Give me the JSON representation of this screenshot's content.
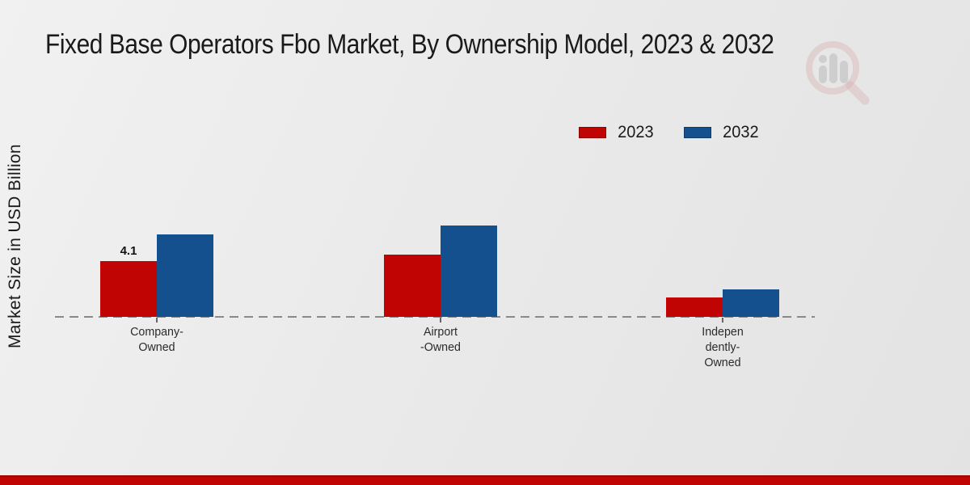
{
  "title": "Fixed Base Operators Fbo Market, By Ownership Model, 2023 & 2032",
  "y_axis_label": "Market Size in USD Billion",
  "legend": [
    {
      "label": "2023",
      "color": "#c00404"
    },
    {
      "label": "2032",
      "color": "#15508e"
    }
  ],
  "colors": {
    "series_2023": "#c00404",
    "series_2032": "#15508e",
    "footer_band": "#c00404",
    "baseline": "#8a8a8a",
    "background": "#eaeaea"
  },
  "watermark_icon": "magnifier-bar-chart-logo",
  "chart_data": {
    "type": "bar",
    "title": "Fixed Base Operators Fbo Market, By Ownership Model, 2023 & 2032",
    "xlabel": "",
    "ylabel": "Market Size in USD Billion",
    "categories": [
      "Company-Owned",
      "Airport-Owned",
      "Independently-Owned"
    ],
    "category_label_lines": [
      [
        "Company-",
        "Owned"
      ],
      [
        "Airport",
        "-Owned"
      ],
      [
        "Indepen",
        "dently-",
        "Owned"
      ]
    ],
    "series": [
      {
        "name": "2023",
        "color": "#c00404",
        "values": [
          4.1,
          4.6,
          1.4
        ]
      },
      {
        "name": "2032",
        "color": "#15508e",
        "values": [
          6.1,
          6.7,
          2.0
        ]
      }
    ],
    "data_labels": [
      {
        "series": "2023",
        "category_index": 0,
        "text": "4.1"
      }
    ],
    "ylim": [
      0,
      8
    ],
    "grid": false,
    "axis_style": "dashed-baseline-only",
    "legend_position": "top-right"
  }
}
